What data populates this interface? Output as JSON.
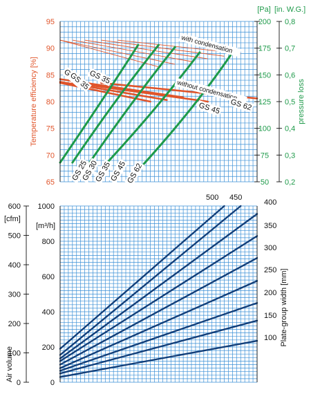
{
  "colors": {
    "orange": "#e0542a",
    "green": "#1e9a4a",
    "blue": "#123f7a",
    "grid": "#3a8fd6",
    "black": "#111111"
  },
  "chart_data": [
    {
      "type": "line",
      "left_axis": {
        "label": "Temperature efficiency [%]",
        "ticks": [
          "95",
          "90",
          "85",
          "80",
          "75",
          "70",
          "65"
        ],
        "range": [
          65,
          95
        ]
      },
      "right_axis_pa": {
        "unit": "[Pa]",
        "ticks": [
          "200",
          "175",
          "150",
          "125",
          "100",
          "75",
          "50"
        ],
        "range": [
          50,
          200
        ]
      },
      "right_axis_inwg": {
        "unit": "[in. W.G.]",
        "label": "pressure loss",
        "ticks": [
          "0,8",
          "0,7",
          "0,6",
          "0,5",
          "0,4",
          "0,3",
          "0,2"
        ],
        "range": [
          0.2,
          0.8
        ]
      },
      "annotations": [
        "with condensation",
        "without condensation"
      ],
      "efficiency_with_condensation": [
        {
          "x": [
            0,
            24
          ],
          "y": [
            91.5,
            86.5
          ]
        },
        {
          "x": [
            0,
            28
          ],
          "y": [
            91.5,
            87.0
          ]
        },
        {
          "x": [
            3,
            32
          ],
          "y": [
            91.5,
            87.5
          ]
        },
        {
          "x": [
            6,
            36
          ],
          "y": [
            91.5,
            88.0
          ]
        },
        {
          "x": [
            10,
            40
          ],
          "y": [
            91.5,
            88.5
          ]
        },
        {
          "x": [
            14,
            44
          ],
          "y": [
            91.5,
            89.0
          ]
        }
      ],
      "efficiency_without_condensation": [
        {
          "name": "GS 25",
          "x": [
            0,
            22
          ],
          "y": [
            83.5,
            80.0
          ]
        },
        {
          "name": "GS 30",
          "x": [
            0,
            26
          ],
          "y": [
            83.7,
            80.3
          ]
        },
        {
          "name": "GS 35",
          "x": [
            0,
            30
          ],
          "y": [
            84.2,
            80.8
          ]
        },
        {
          "name": "GS 45",
          "x": [
            3,
            36
          ],
          "y": [
            83.5,
            80.0
          ]
        },
        {
          "name": "GS 62",
          "x": [
            10,
            48
          ],
          "y": [
            83.5,
            80.6
          ]
        }
      ],
      "pressure_loss": [
        {
          "name": "GS 25",
          "x": [
            0,
            11,
            19
          ],
          "y_pa": [
            68,
            130,
            178
          ]
        },
        {
          "name": "GS 30",
          "x": [
            3,
            14,
            24
          ],
          "y_pa": [
            68,
            130,
            178
          ]
        },
        {
          "name": "GS 35",
          "x": [
            7,
            18,
            28
          ],
          "y_pa": [
            67,
            128,
            176
          ]
        },
        {
          "name": "GS 45",
          "x": [
            11,
            24,
            34
          ],
          "y_pa": [
            66,
            120,
            171
          ]
        },
        {
          "name": "GS 62",
          "x": [
            20,
            33,
            42
          ],
          "y_pa": [
            65,
            120,
            171
          ]
        }
      ]
    },
    {
      "type": "line",
      "left_axis_cfm": {
        "unit": "[cfm]",
        "ticks": [
          "600",
          "500",
          "400",
          "300",
          "200",
          "100",
          "0"
        ],
        "range": [
          0,
          600
        ]
      },
      "left_axis_m3h": {
        "unit": "[m³/h]",
        "label": "Air volume",
        "ticks": [
          "1000",
          "800",
          "600",
          "400",
          "200",
          "0"
        ],
        "range": [
          0,
          1000
        ]
      },
      "right_axis": {
        "label": "Plate-group width [mm]",
        "ticks": [
          "400",
          "350",
          "300",
          "250",
          "200",
          "150",
          "100"
        ]
      },
      "series": [
        {
          "name": "100",
          "x": [
            0,
            48
          ],
          "y": [
            30,
            235
          ]
        },
        {
          "name": "150",
          "x": [
            0,
            48
          ],
          "y": [
            50,
            350
          ]
        },
        {
          "name": "200",
          "x": [
            0,
            48
          ],
          "y": [
            65,
            450
          ]
        },
        {
          "name": "250",
          "x": [
            0,
            48
          ],
          "y": [
            80,
            575
          ]
        },
        {
          "name": "300",
          "x": [
            0,
            48
          ],
          "y": [
            100,
            705
          ]
        },
        {
          "name": "350",
          "x": [
            0,
            48
          ],
          "y": [
            120,
            830
          ]
        },
        {
          "name": "400",
          "x": [
            0,
            48
          ],
          "y": [
            135,
            955
          ]
        },
        {
          "name": "450",
          "x": [
            0,
            44
          ],
          "y": [
            155,
            1000
          ]
        },
        {
          "name": "500",
          "x": [
            0,
            40
          ],
          "y": [
            190,
            1000
          ]
        }
      ]
    }
  ]
}
